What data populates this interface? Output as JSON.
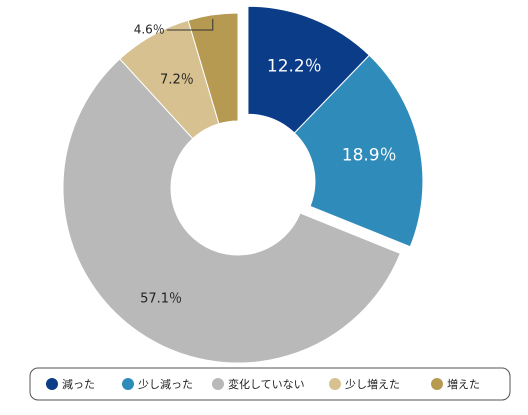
{
  "chart_data": {
    "type": "donut",
    "categories": [
      "減った",
      "少し減った",
      "変化していない",
      "少し増えた",
      "増えた"
    ],
    "values": [
      12.2,
      18.9,
      57.1,
      7.2,
      4.6
    ],
    "value_labels": [
      "12.2％",
      "18.9％",
      "57.1％",
      "7.2％",
      "4.6％"
    ],
    "colors": [
      "#0b3c88",
      "#2f8bb9",
      "#b9b9b9",
      "#d7c190",
      "#b79a52"
    ],
    "label_colors": [
      "#ffffff",
      "#ffffff",
      "#222222",
      "#222222",
      "#222222"
    ],
    "explode": [
      true,
      true,
      false,
      false,
      false
    ],
    "legend": "bottom"
  }
}
